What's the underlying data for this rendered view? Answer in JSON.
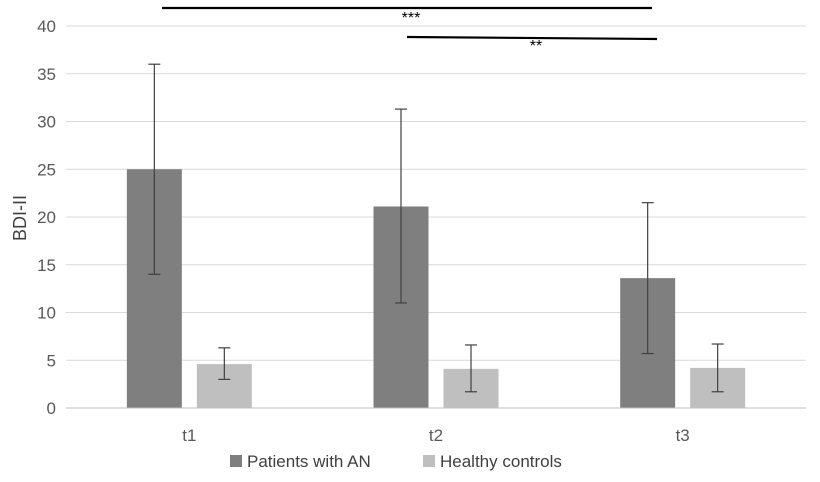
{
  "chart_data": {
    "type": "bar",
    "categories": [
      "t1",
      "t2",
      "t3"
    ],
    "series": [
      {
        "name": "Patients with AN",
        "color": "#7f7f7f",
        "values": [
          25.0,
          21.1,
          13.6
        ],
        "error_low": [
          14.0,
          11.0,
          5.7
        ],
        "error_high": [
          36.0,
          31.3,
          21.5
        ]
      },
      {
        "name": "Healthy controls",
        "color": "#bfbfbf",
        "values": [
          4.6,
          4.1,
          4.2
        ],
        "error_low": [
          3.0,
          1.7,
          1.7
        ],
        "error_high": [
          6.3,
          6.6,
          6.7
        ]
      }
    ],
    "ylabel": "BDI-II",
    "ylim": [
      0,
      40
    ],
    "yticks": [
      0,
      5,
      10,
      15,
      20,
      25,
      30,
      35,
      40
    ],
    "grid": true,
    "legend_position": "bottom",
    "annotations": [
      {
        "text": "***",
        "from": "t1",
        "to": "t3"
      },
      {
        "text": "**",
        "from": "t2",
        "to": "t3"
      }
    ]
  }
}
